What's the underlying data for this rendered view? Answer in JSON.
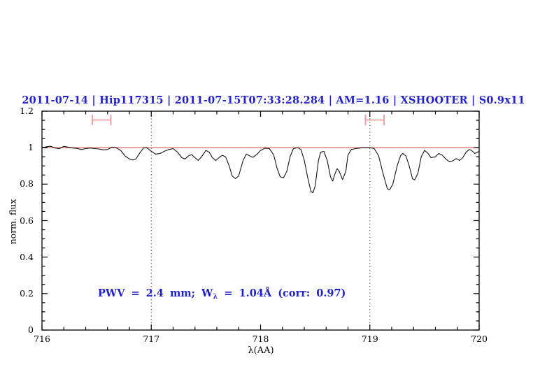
{
  "title": "2011-07-14 | Hip117315 | 2011-07-15T07:33:28.284 | AM=1.16 | XSHOOTER | S0.9x11",
  "observation": {
    "date": "2011-07-14",
    "target": "Hip117315",
    "obs_time": "2011-07-15T07:33:28.284",
    "airmass": 1.16,
    "instrument": "XSHOOTER",
    "slit": "S0.9x11"
  },
  "annotation": {
    "part1": "PWV = 2.4 mm; W",
    "sub": "λ",
    "part2": " = 1.04Å (corr: 0.97)"
  },
  "colors": {
    "accent_blue": "#2222cc",
    "spectrum_black": "#161616",
    "model_red": "#e87474",
    "marker_red": "#f09a9a",
    "vline_gray": "#3a3a3a",
    "frame_black": "#000000"
  },
  "chart_data": {
    "type": "line",
    "title": "2011-07-14 | Hip117315 | 2011-07-15T07:33:28.284 | AM=1.16 | XSHOOTER | S0.9x11",
    "xlabel": "λ(AA)",
    "ylabel": "norm. flux",
    "xlim": [
      716,
      720
    ],
    "ylim": [
      0,
      1.2
    ],
    "x_minor_step": 0.2,
    "y_minor_step": 0.05,
    "grid": false,
    "x_ticks": [
      {
        "value": 716,
        "label": "716"
      },
      {
        "value": 717,
        "label": "717"
      },
      {
        "value": 718,
        "label": "718"
      },
      {
        "value": 719,
        "label": "719"
      },
      {
        "value": 720,
        "label": "720"
      }
    ],
    "y_ticks": [
      {
        "value": 0,
        "label": "0"
      },
      {
        "value": 0.2,
        "label": "0.2"
      },
      {
        "value": 0.4,
        "label": "0.4"
      },
      {
        "value": 0.6,
        "label": "0.6"
      },
      {
        "value": 0.8,
        "label": "0.8"
      },
      {
        "value": 1,
        "label": "1"
      },
      {
        "value": 1.2,
        "label": "1.2"
      }
    ],
    "vlines": [
      717,
      719
    ],
    "model_continuum_flux": 1.0,
    "wv_markers": [
      {
        "x_min": 716.46,
        "x_max": 716.63,
        "y": 1.152,
        "cap_half": 0.029
      },
      {
        "x_min": 718.96,
        "x_max": 719.13,
        "y": 1.152,
        "cap_half": 0.029
      }
    ],
    "measurements": {
      "pwv_mm": 2.4,
      "w_lambda_A": 1.04,
      "corr": 0.97
    },
    "series": [
      {
        "name": "observed normalized spectrum",
        "points": [
          [
            716.0,
            1.0
          ],
          [
            716.04,
            1.005
          ],
          [
            716.08,
            1.008
          ],
          [
            716.12,
            0.998
          ],
          [
            716.16,
            0.995
          ],
          [
            716.2,
            1.007
          ],
          [
            716.24,
            1.003
          ],
          [
            716.28,
            0.998
          ],
          [
            716.32,
            0.996
          ],
          [
            716.36,
            0.99
          ],
          [
            716.4,
            0.995
          ],
          [
            716.44,
            0.998
          ],
          [
            716.48,
            0.995
          ],
          [
            716.52,
            0.993
          ],
          [
            716.56,
            0.988
          ],
          [
            716.6,
            0.99
          ],
          [
            716.64,
            1.003
          ],
          [
            716.68,
            1.0
          ],
          [
            716.72,
            0.985
          ],
          [
            716.76,
            0.955
          ],
          [
            716.8,
            0.938
          ],
          [
            716.83,
            0.932
          ],
          [
            716.86,
            0.938
          ],
          [
            716.9,
            0.975
          ],
          [
            716.93,
            0.998
          ],
          [
            716.96,
            1.0
          ],
          [
            717.0,
            0.98
          ],
          [
            717.04,
            0.965
          ],
          [
            717.08,
            0.968
          ],
          [
            717.12,
            0.98
          ],
          [
            717.16,
            0.99
          ],
          [
            717.2,
            0.995
          ],
          [
            717.24,
            0.975
          ],
          [
            717.28,
            0.945
          ],
          [
            717.31,
            0.938
          ],
          [
            717.34,
            0.955
          ],
          [
            717.37,
            0.962
          ],
          [
            717.4,
            0.945
          ],
          [
            717.43,
            0.93
          ],
          [
            717.46,
            0.95
          ],
          [
            717.5,
            0.985
          ],
          [
            717.53,
            0.975
          ],
          [
            717.56,
            0.945
          ],
          [
            717.59,
            0.93
          ],
          [
            717.62,
            0.945
          ],
          [
            717.65,
            0.958
          ],
          [
            717.68,
            0.95
          ],
          [
            717.71,
            0.905
          ],
          [
            717.74,
            0.845
          ],
          [
            717.77,
            0.83
          ],
          [
            717.8,
            0.845
          ],
          [
            717.84,
            0.93
          ],
          [
            717.87,
            0.965
          ],
          [
            717.9,
            0.955
          ],
          [
            717.93,
            0.947
          ],
          [
            717.97,
            0.965
          ],
          [
            718.0,
            0.985
          ],
          [
            718.04,
            0.997
          ],
          [
            718.08,
            0.995
          ],
          [
            718.12,
            0.96
          ],
          [
            718.15,
            0.89
          ],
          [
            718.18,
            0.84
          ],
          [
            718.21,
            0.835
          ],
          [
            718.24,
            0.87
          ],
          [
            718.27,
            0.95
          ],
          [
            718.3,
            0.995
          ],
          [
            718.34,
            1.0
          ],
          [
            718.37,
            0.99
          ],
          [
            718.4,
            0.93
          ],
          [
            718.43,
            0.84
          ],
          [
            718.46,
            0.76
          ],
          [
            718.48,
            0.753
          ],
          [
            718.5,
            0.79
          ],
          [
            718.53,
            0.93
          ],
          [
            718.55,
            0.975
          ],
          [
            718.58,
            0.98
          ],
          [
            718.61,
            0.93
          ],
          [
            718.64,
            0.84
          ],
          [
            718.66,
            0.817
          ],
          [
            718.68,
            0.855
          ],
          [
            718.7,
            0.885
          ],
          [
            718.72,
            0.87
          ],
          [
            718.75,
            0.825
          ],
          [
            718.78,
            0.87
          ],
          [
            718.8,
            0.96
          ],
          [
            718.83,
            0.99
          ],
          [
            718.87,
            0.995
          ],
          [
            718.91,
            0.998
          ],
          [
            718.95,
            1.0
          ],
          [
            719.0,
            1.0
          ],
          [
            719.04,
            0.995
          ],
          [
            719.08,
            0.955
          ],
          [
            719.12,
            0.86
          ],
          [
            719.16,
            0.775
          ],
          [
            719.18,
            0.768
          ],
          [
            719.21,
            0.8
          ],
          [
            719.25,
            0.9
          ],
          [
            719.28,
            0.955
          ],
          [
            719.3,
            0.968
          ],
          [
            719.33,
            0.955
          ],
          [
            719.36,
            0.9
          ],
          [
            719.39,
            0.83
          ],
          [
            719.41,
            0.823
          ],
          [
            719.44,
            0.86
          ],
          [
            719.47,
            0.95
          ],
          [
            719.5,
            0.985
          ],
          [
            719.53,
            0.97
          ],
          [
            719.56,
            0.945
          ],
          [
            719.6,
            0.95
          ],
          [
            719.63,
            0.968
          ],
          [
            719.66,
            0.96
          ],
          [
            719.7,
            0.935
          ],
          [
            719.73,
            0.923
          ],
          [
            719.76,
            0.928
          ],
          [
            719.79,
            0.94
          ],
          [
            719.82,
            0.93
          ],
          [
            719.85,
            0.945
          ],
          [
            719.88,
            0.975
          ],
          [
            719.91,
            0.99
          ],
          [
            719.93,
            0.985
          ],
          [
            719.96,
            0.968
          ],
          [
            720.0,
            0.98
          ]
        ]
      }
    ]
  }
}
